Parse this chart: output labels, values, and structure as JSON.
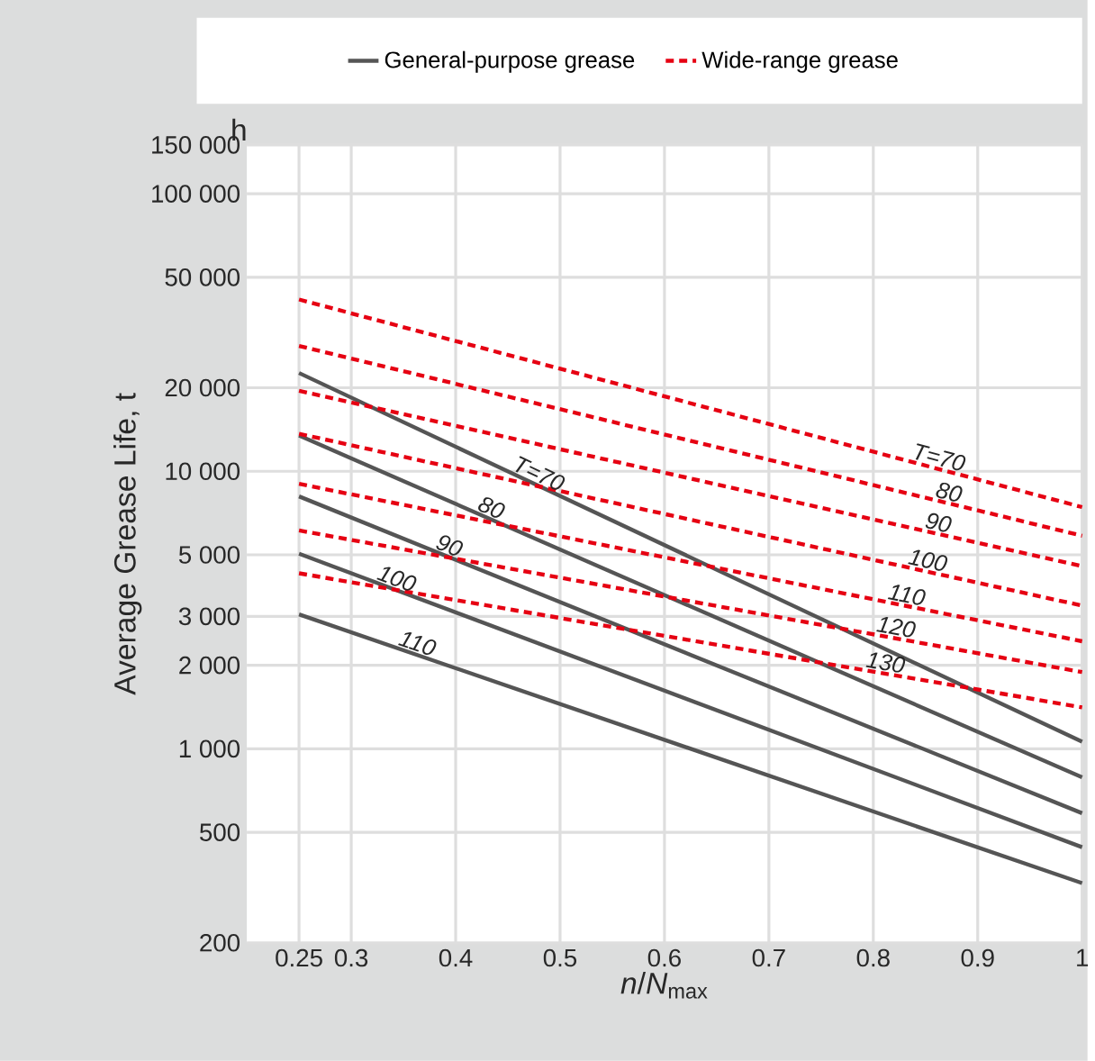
{
  "chart_data": {
    "type": "line",
    "xlabel": "*n*/*N*$_{max}$",
    "ylabel": "Average Grease Life, t",
    "annotations": [
      "h",
      {
        "text": "*T*=70",
        "x": 0.475,
        "y": 9020
      },
      {
        "text": "80",
        "x": 0.43,
        "y": 6800
      },
      {
        "text": "90",
        "x": 0.39,
        "y": 4960
      },
      {
        "text": "100",
        "x": 0.34,
        "y": 3770
      },
      {
        "text": "110",
        "x": 0.36,
        "y": 2200
      },
      {
        "text": "*T*=70",
        "x": 0.86,
        "y": 10260
      },
      {
        "text": "80",
        "x": 0.87,
        "y": 7690
      },
      {
        "text": "90",
        "x": 0.86,
        "y": 5970
      },
      {
        "text": "100",
        "x": 0.85,
        "y": 4370
      },
      {
        "text": "110",
        "x": 0.83,
        "y": 3280
      },
      {
        "text": "120",
        "x": 0.82,
        "y": 2510
      },
      {
        "text": "130",
        "x": 0.81,
        "y": 1870
      }
    ],
    "x": [
      0.25,
      1
    ],
    "series": [
      {
        "name": "General-purpose grease",
        "color": "#555555",
        "line_style": "solid",
        "values": [
          22600,
          1060
        ]
      },
      {
        "color": "#555555",
        "line_style": "solid",
        "values": [
          13450,
          789
        ]
      },
      {
        "color": "#555555",
        "line_style": "solid",
        "values": [
          8120,
          586
        ]
      },
      {
        "color": "#555555",
        "line_style": "solid",
        "values": [
          5050,
          442
        ]
      },
      {
        "color": "#555555",
        "line_style": "solid",
        "values": [
          3050,
          328
        ]
      },
      {
        "name": "Wide-range grease",
        "color": "#e60012",
        "line_style": "dashed",
        "values": [
          41600,
          7430
        ]
      },
      {
        "color": "#e60012",
        "line_style": "dashed",
        "values": [
          28300,
          5860
        ]
      },
      {
        "color": "#e60012",
        "line_style": "dashed",
        "values": [
          19500,
          4550
        ]
      },
      {
        "color": "#e60012",
        "line_style": "dashed",
        "values": [
          13650,
          3280
        ]
      },
      {
        "color": "#e60012",
        "line_style": "dashed",
        "values": [
          9010,
          2440
        ]
      },
      {
        "color": "#e60012",
        "line_style": "dashed",
        "values": [
          6120,
          1890
        ]
      },
      {
        "color": "#e60012",
        "line_style": "dashed",
        "values": [
          4290,
          1410
        ]
      }
    ],
    "xlim": [
      0.2,
      1
    ],
    "ylim": [
      200,
      150000
    ],
    "xticks": [
      0.25,
      0.3,
      0.4,
      0.5,
      0.6,
      0.7,
      0.8,
      0.9,
      1
    ],
    "yticks": [
      {
        "value": 200,
        "label": "200"
      },
      {
        "value": 500,
        "label": "500"
      },
      {
        "value": 1000,
        "label": "1 000"
      },
      {
        "value": 2000,
        "label": "2 000"
      },
      {
        "value": 3000,
        "label": "3 000"
      },
      {
        "value": 5000,
        "label": "5 000"
      },
      {
        "value": 10000,
        "label": "10 000"
      },
      {
        "value": 20000,
        "label": "20 000"
      },
      {
        "value": 50000,
        "label": "50 000"
      },
      {
        "value": 100000,
        "label": "100 000"
      },
      {
        "value": 150000,
        "label": "150 000"
      }
    ],
    "log": "y",
    "grid": true,
    "legend": "top"
  }
}
